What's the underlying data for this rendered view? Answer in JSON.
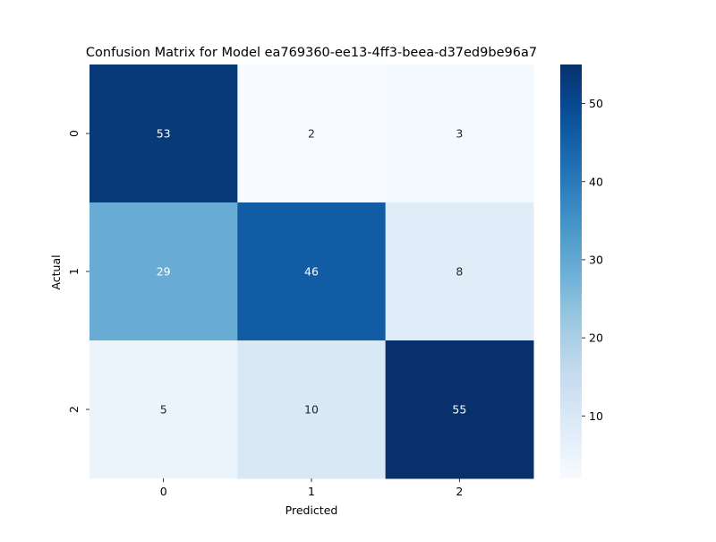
{
  "chart_data": {
    "type": "heatmap",
    "title": "Confusion Matrix for Model ea769360-ee13-4ff3-beea-d37ed9be96a7",
    "xlabel": "Predicted",
    "ylabel": "Actual",
    "x_categories": [
      "0",
      "1",
      "2"
    ],
    "y_categories": [
      "0",
      "1",
      "2"
    ],
    "values": [
      [
        53,
        2,
        3
      ],
      [
        29,
        46,
        8
      ],
      [
        5,
        10,
        55
      ]
    ],
    "colormap": "Blues",
    "color_range": [
      2,
      55
    ],
    "colorbar_ticks": [
      "10",
      "20",
      "30",
      "40",
      "50"
    ],
    "colorbar_tick_values": [
      10,
      20,
      30,
      40,
      50
    ]
  }
}
